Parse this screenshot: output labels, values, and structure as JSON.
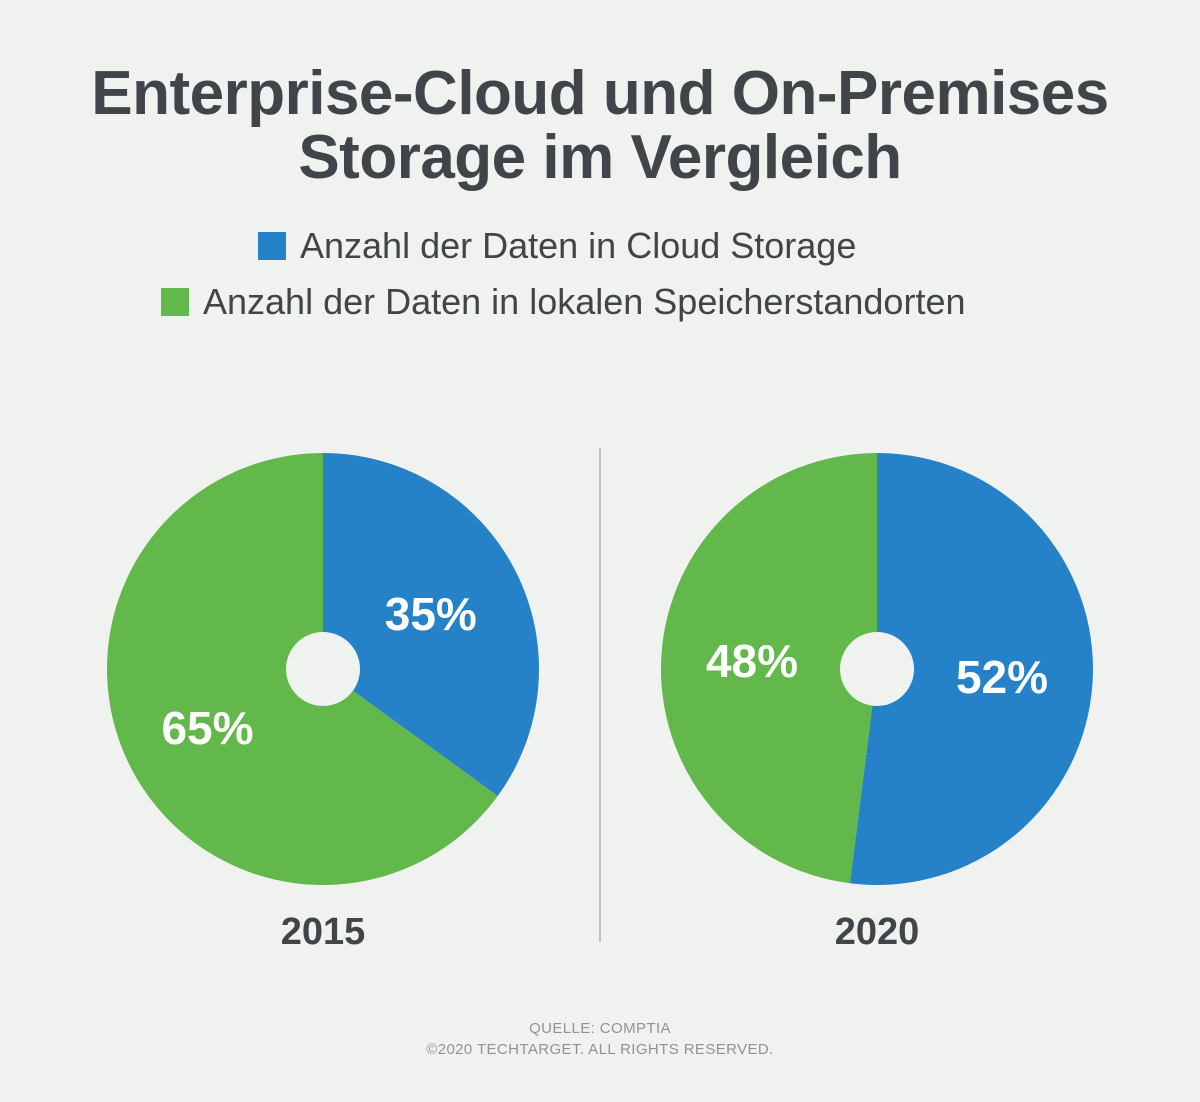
{
  "title": {
    "line1": "Enterprise-Cloud und On-Premises",
    "line2": "Storage im Vergleich"
  },
  "legend": {
    "cloud_label": "Anzahl der Daten in Cloud Storage",
    "local_label": "Anzahl der Daten in lokalen Speicherstandorten"
  },
  "colors": {
    "cloud": "#2581c8",
    "local": "#62b84a",
    "background": "#f0f2ef",
    "text": "#414448"
  },
  "chart_data": [
    {
      "type": "pie",
      "title": "2015",
      "slices": [
        {
          "name": "Anzahl der Daten in Cloud Storage",
          "value": 35,
          "label": "35%"
        },
        {
          "name": "Anzahl der Daten in lokalen Speicherstandorten",
          "value": 65,
          "label": "65%"
        }
      ]
    },
    {
      "type": "pie",
      "title": "2020",
      "slices": [
        {
          "name": "Anzahl der Daten in Cloud Storage",
          "value": 52,
          "label": "52%"
        },
        {
          "name": "Anzahl der Daten in lokalen Speicherstandorten",
          "value": 48,
          "label": "48%"
        }
      ]
    }
  ],
  "footer": {
    "source": "QUELLE: COMPTIA",
    "copyright": "©2020 TECHTARGET. ALL RIGHTS RESERVED."
  }
}
